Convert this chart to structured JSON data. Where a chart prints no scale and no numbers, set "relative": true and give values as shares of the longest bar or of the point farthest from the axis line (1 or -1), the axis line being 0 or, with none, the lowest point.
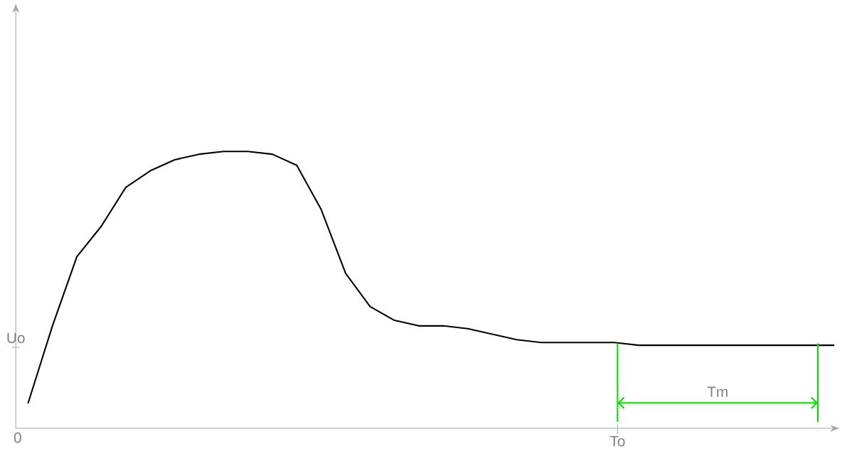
{
  "chart_data": {
    "type": "line",
    "relative": true,
    "categories": [
      null,
      null,
      null,
      null,
      null,
      null,
      null,
      null,
      null,
      null,
      null,
      null,
      null,
      null,
      null,
      null,
      null,
      null,
      null,
      null,
      null,
      null,
      null,
      null,
      null,
      null,
      null,
      null,
      null,
      null,
      null,
      null,
      null,
      null
    ],
    "series": [
      {
        "color": "#000000",
        "values": [
          0.09,
          0.37,
          0.62,
          0.73,
          0.87,
          0.93,
          0.97,
          0.99,
          1,
          1,
          0.99,
          0.95,
          0.79,
          0.56,
          0.44,
          0.39,
          0.37,
          0.37,
          0.36,
          0.34,
          0.32,
          0.31,
          0.31,
          0.31,
          0.31,
          0.3,
          0.3,
          0.3,
          0.3,
          0.3,
          0.3,
          0.3,
          0.3,
          0.3
        ]
      }
    ],
    "annotations": [
      "0",
      "Uo",
      "To",
      "Tm"
    ],
    "marker": "none",
    "line_style": "solid"
  }
}
